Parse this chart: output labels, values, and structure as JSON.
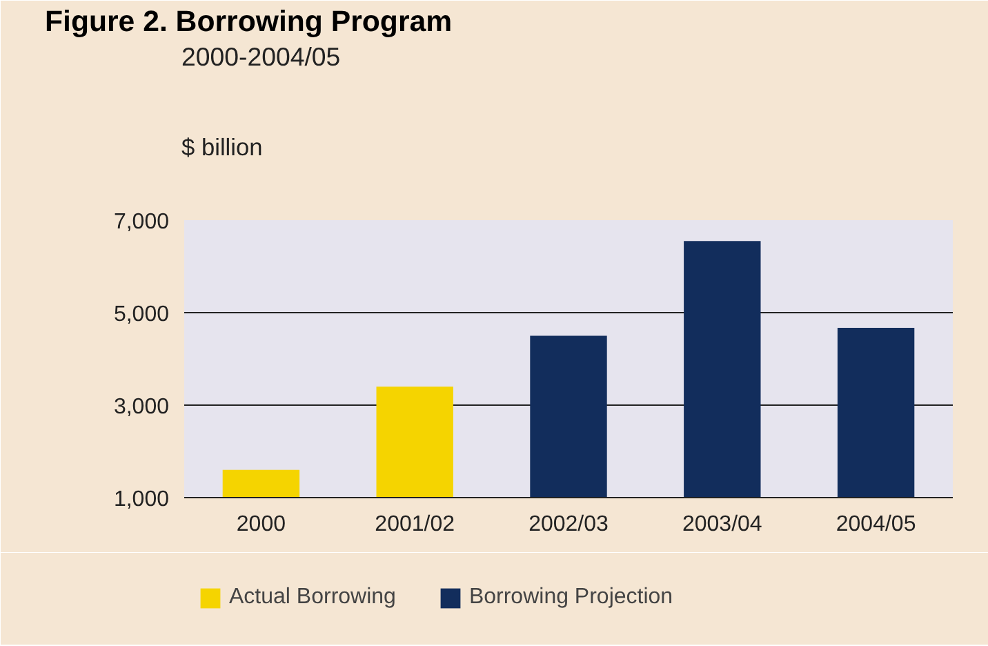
{
  "chart_data": {
    "type": "bar",
    "title": "Figure 2. Borrowing Program",
    "subtitle": "2000-2004/05",
    "ylabel": "$ billion",
    "categories": [
      "2000",
      "2001/02",
      "2002/03",
      "2003/04",
      "2004/05"
    ],
    "series": [
      {
        "name": "Actual Borrowing",
        "color": "#f5d400",
        "values": [
          1600,
          3400,
          null,
          null,
          null
        ]
      },
      {
        "name": "Borrowing Projection",
        "color": "#122d5c",
        "values": [
          null,
          null,
          4500,
          6550,
          4670
        ]
      }
    ],
    "ylim": [
      1000,
      7000
    ],
    "yticks": [
      {
        "value": 1000,
        "label": "1,000"
      },
      {
        "value": 3000,
        "label": "3,000"
      },
      {
        "value": 5000,
        "label": "5,000"
      },
      {
        "value": 7000,
        "label": "7,000"
      }
    ],
    "grid": "y",
    "legend": "bottom"
  }
}
